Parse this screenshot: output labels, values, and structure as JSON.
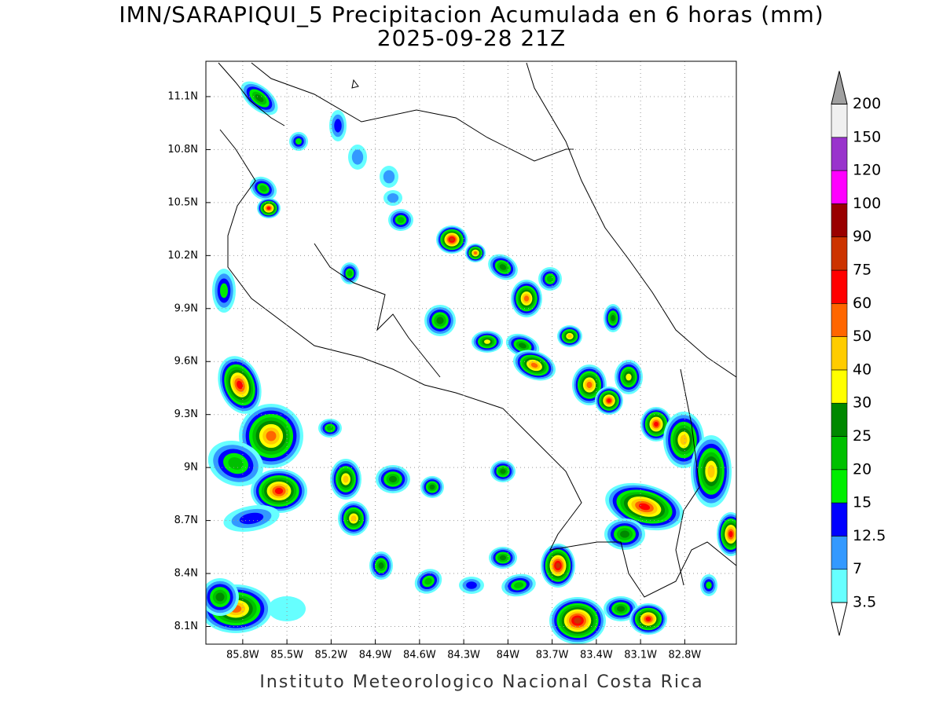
{
  "title": "IMN/SARAPIQUI_5 Precipitacion Acumulada en 6 horas (mm)",
  "subtitle": "2025-09-28 21Z",
  "map": {
    "xlim": [
      -86.05,
      -82.45
    ],
    "ylim": [
      8.0,
      11.3
    ],
    "xticks": [
      {
        "value": -85.8,
        "label": "85.8W"
      },
      {
        "value": -85.5,
        "label": "85.5W"
      },
      {
        "value": -85.2,
        "label": "85.2W"
      },
      {
        "value": -84.9,
        "label": "84.9W"
      },
      {
        "value": -84.6,
        "label": "84.6W"
      },
      {
        "value": -84.3,
        "label": "84.3W"
      },
      {
        "value": -84.0,
        "label": "84W"
      },
      {
        "value": -83.7,
        "label": "83.7W"
      },
      {
        "value": -83.4,
        "label": "83.4W"
      },
      {
        "value": -83.1,
        "label": "83.1W"
      },
      {
        "value": -82.8,
        "label": "82.8W"
      }
    ],
    "yticks": [
      {
        "value": 8.1,
        "label": "8.1N"
      },
      {
        "value": 8.4,
        "label": "8.4N"
      },
      {
        "value": 8.7,
        "label": "8.7N"
      },
      {
        "value": 9.0,
        "label": "9N"
      },
      {
        "value": 9.3,
        "label": "9.3N"
      },
      {
        "value": 9.6,
        "label": "9.6N"
      },
      {
        "value": 9.9,
        "label": "9.9N"
      },
      {
        "value": 10.2,
        "label": "10.2N"
      },
      {
        "value": 10.5,
        "label": "10.5N"
      },
      {
        "value": 10.8,
        "label": "10.8N"
      },
      {
        "value": 11.1,
        "label": "11.1N"
      }
    ],
    "grid": true
  },
  "colorbar": {
    "levels": [
      3.5,
      7,
      12.5,
      15,
      20,
      25,
      30,
      40,
      50,
      60,
      75,
      90,
      100,
      120,
      150,
      200
    ],
    "colors": [
      "#66ffff",
      "#3399ff",
      "#0000ff",
      "#00ee00",
      "#00c000",
      "#008800",
      "#ffff00",
      "#ffcc00",
      "#ff6600",
      "#ff0000",
      "#cc3300",
      "#990000",
      "#ff00ff",
      "#9933cc",
      "#f0f0f0"
    ],
    "under_color": "#ffffff",
    "over_color": "#a0a0a0"
  },
  "credit": "Instituto Meteorologico Nacional Costa Rica"
}
